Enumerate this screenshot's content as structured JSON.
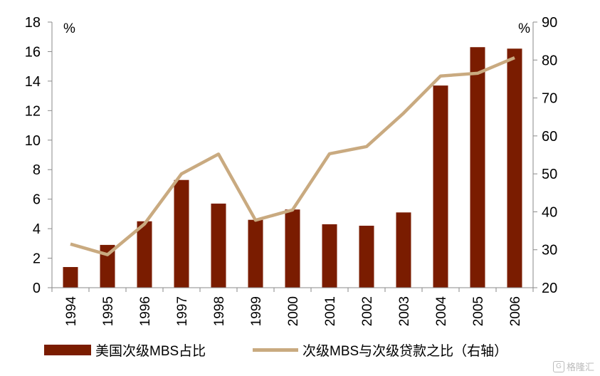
{
  "chart_data": {
    "type": "bar",
    "categories": [
      "1994",
      "1995",
      "1996",
      "1997",
      "1998",
      "1999",
      "2000",
      "2001",
      "2002",
      "2003",
      "2004",
      "2005",
      "2006"
    ],
    "series": [
      {
        "name": "美国次级MBS占比",
        "kind": "bar",
        "axis": "left",
        "color": "#7a1c00",
        "values": [
          1.4,
          2.9,
          4.5,
          7.3,
          5.7,
          4.6,
          5.3,
          4.3,
          4.2,
          5.1,
          13.7,
          16.3,
          16.2
        ]
      },
      {
        "name": "次级MBS与次级贷款之比（右轴）",
        "kind": "line",
        "axis": "right",
        "color": "#c9aa80",
        "values": [
          31.5,
          28.7,
          36.8,
          50.0,
          55.2,
          37.8,
          40.5,
          55.3,
          57.2,
          66.0,
          75.8,
          76.5,
          80.6
        ]
      }
    ],
    "y_left": {
      "unit": "%",
      "ylim": [
        0,
        18
      ],
      "ticks": [
        0,
        2,
        4,
        6,
        8,
        10,
        12,
        14,
        16,
        18
      ]
    },
    "y_right": {
      "unit": "%",
      "ylim": [
        20,
        90
      ],
      "ticks": [
        20,
        30,
        40,
        50,
        60,
        70,
        80,
        90
      ]
    },
    "legend_position": "bottom",
    "grid": false
  },
  "watermark": {
    "icon": "G",
    "text": "格隆汇"
  }
}
